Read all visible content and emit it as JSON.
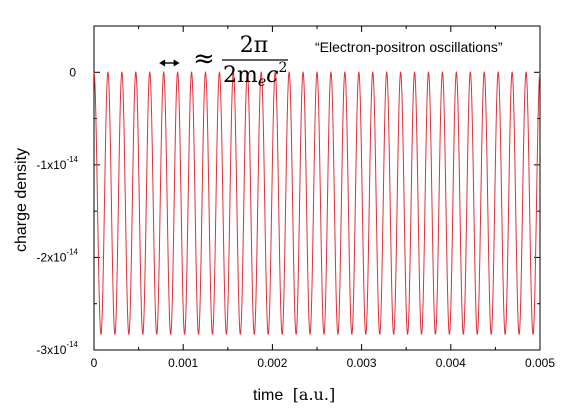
{
  "chart_data": {
    "type": "line",
    "xlabel": "time",
    "xlabel_unit": "[a.u.]",
    "ylabel": "charge density",
    "xlim": [
      0,
      0.005
    ],
    "ylim": [
      -3e-14,
      5e-15
    ],
    "x_ticks": [
      {
        "value": 0,
        "label": "0"
      },
      {
        "value": 0.001,
        "label": "0.001"
      },
      {
        "value": 0.002,
        "label": "0.002"
      },
      {
        "value": 0.003,
        "label": "0.003"
      },
      {
        "value": 0.004,
        "label": "0.004"
      },
      {
        "value": 0.005,
        "label": "0.005"
      }
    ],
    "y_ticks": [
      {
        "value": 0,
        "label": "0",
        "exp": ""
      },
      {
        "value": -1e-14,
        "label": "-1x10",
        "exp": "-14"
      },
      {
        "value": -2e-14,
        "label": "-2x10",
        "exp": "-14"
      },
      {
        "value": -3e-14,
        "label": "-3x10",
        "exp": "-14"
      }
    ],
    "grid": false,
    "legend": "none",
    "series": [
      {
        "color": "#e0303a",
        "shape": "cosine oscillation between maximum and minimum",
        "max": 0,
        "min": -2.83e-14,
        "x_start": 0,
        "x_end": 0.005,
        "cycles": 32
      }
    ],
    "annotations": {
      "title_quote": "“Electron-positron oscillations”",
      "period_symbol": "≈",
      "period_numerator": "2π",
      "period_denominator": "2m",
      "period_denominator_sub": "e",
      "period_denominator_rest": "c",
      "period_denominator_sup": "2",
      "period_arrow_x_range": [
        0.00073,
        0.00096
      ]
    }
  }
}
